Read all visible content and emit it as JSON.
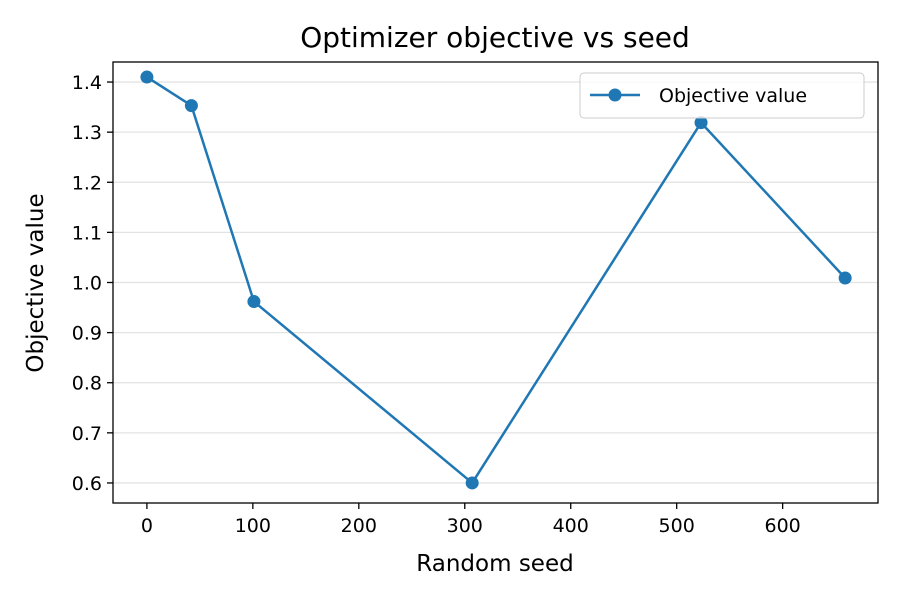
{
  "chart_data": {
    "type": "line",
    "title": "Optimizer objective vs seed",
    "xlabel": "Random seed",
    "ylabel": "Objective value",
    "xlim": [
      -32,
      690
    ],
    "ylim": [
      0.56,
      1.44
    ],
    "xticks": [
      0,
      100,
      200,
      300,
      400,
      500,
      600
    ],
    "yticks": [
      0.6,
      0.7,
      0.8,
      0.9,
      1.0,
      1.1,
      1.2,
      1.3,
      1.4
    ],
    "grid": "horizontal",
    "legend_position": "upper right",
    "series": [
      {
        "name": "Objective value",
        "color": "#1f77b4",
        "marker": "circle",
        "points": [
          {
            "x": 0,
            "y": 1.41
          },
          {
            "x": 42,
            "y": 1.353
          },
          {
            "x": 101,
            "y": 0.962
          },
          {
            "x": 307,
            "y": 0.6
          },
          {
            "x": 523,
            "y": 1.319
          },
          {
            "x": 659,
            "y": 1.009
          }
        ]
      }
    ]
  }
}
